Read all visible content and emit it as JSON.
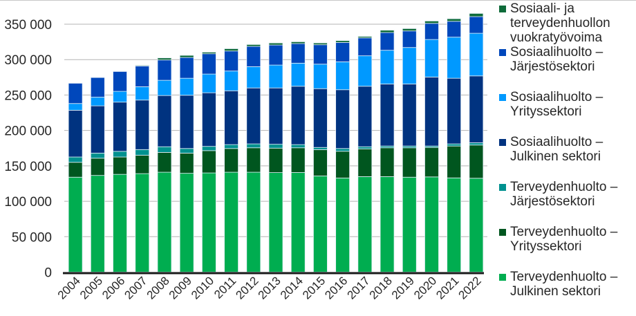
{
  "chart_data": {
    "type": "bar",
    "stacked": true,
    "title": "",
    "xlabel": "",
    "ylabel": "",
    "ylim": [
      0,
      350000
    ],
    "yticks": [
      0,
      50000,
      100000,
      150000,
      200000,
      250000,
      300000,
      350000
    ],
    "ytick_labels": [
      "0",
      "50 000",
      "100 000",
      "150 000",
      "200 000",
      "250 000",
      "300 000",
      "350 000"
    ],
    "grid": true,
    "legend_position": "right",
    "categories": [
      "2004",
      "2005",
      "2006",
      "2007",
      "2008",
      "2009",
      "2010",
      "2011",
      "2012",
      "2013",
      "2014",
      "2015",
      "2016",
      "2017",
      "2018",
      "2019",
      "2020",
      "2021",
      "2022"
    ],
    "series": [
      {
        "name": "Terveydenhuolto – Julkinen sektori",
        "color": "#00ad50",
        "values": [
          134000,
          136500,
          138000,
          139000,
          141000,
          139500,
          140000,
          141000,
          141000,
          140500,
          140600,
          135700,
          132800,
          134800,
          134800,
          134000,
          134400,
          133000,
          132500
        ]
      },
      {
        "name": "Terveydenhuolto – Yrityssektori",
        "color": "#00561f",
        "values": [
          21000,
          24300,
          24500,
          26000,
          28000,
          28500,
          31500,
          33500,
          34500,
          34500,
          34900,
          37200,
          37800,
          39200,
          40700,
          41500,
          41600,
          45000,
          46900
        ]
      },
      {
        "name": "Terveydenhuolto – Järjestösektori",
        "color": "#00918f",
        "values": [
          7500,
          7200,
          8000,
          8000,
          8000,
          6500,
          6000,
          5500,
          5500,
          5500,
          4500,
          3100,
          3900,
          3000,
          2500,
          2500,
          2000,
          3000,
          3200
        ]
      },
      {
        "name": "Sosiaalihuolto – Julkinen sektori",
        "color": "#003380",
        "values": [
          66000,
          66700,
          69500,
          69900,
          72300,
          75200,
          75700,
          76000,
          79000,
          79500,
          82400,
          83000,
          83000,
          85400,
          87600,
          87600,
          97400,
          92700,
          94400
        ]
      },
      {
        "name": "Sosiaalihuolto – Yrityssektori",
        "color": "#0099ff",
        "values": [
          9500,
          12300,
          15200,
          18800,
          21500,
          24000,
          26400,
          27900,
          30000,
          32300,
          32600,
          34600,
          39400,
          43000,
          47600,
          51500,
          53000,
          58000,
          60200
        ]
      },
      {
        "name": "Sosiaalihuolto – Järjestösektori",
        "color": "#0047bb",
        "values": [
          28600,
          27700,
          28000,
          29300,
          28700,
          29300,
          28700,
          28300,
          28700,
          28300,
          27600,
          27400,
          27300,
          25300,
          25000,
          23400,
          22800,
          22400,
          23500
        ]
      },
      {
        "name": "Sosiaali- ja terveydenhuollon vuokratyövoima",
        "color": "#0e6b3a",
        "values": [
          0,
          0,
          0,
          1000,
          2900,
          3000,
          2200,
          3200,
          2600,
          2900,
          2600,
          2500,
          2600,
          2000,
          3300,
          3300,
          3300,
          3600,
          4500
        ]
      }
    ]
  },
  "legend": {
    "items": [
      {
        "label": "Sosiaali- ja\nterveydenhuollon\nvuokratyövoima",
        "color": "#0e6b3a"
      },
      {
        "label": "Sosiaalihuolto –\nJärjestösektori",
        "color": "#0047bb"
      },
      {
        "label": "Sosiaalihuolto –\nYrityssektori",
        "color": "#0099ff"
      },
      {
        "label": "Sosiaalihuolto –\nJulkinen sektori",
        "color": "#003380"
      },
      {
        "label": "Terveydenhuolto –\nJärjestösektori",
        "color": "#00918f"
      },
      {
        "label": "Terveydenhuolto –\nYrityssektori",
        "color": "#00561f"
      },
      {
        "label": "Terveydenhuolto –\nJulkinen sektori",
        "color": "#00ad50"
      }
    ]
  }
}
